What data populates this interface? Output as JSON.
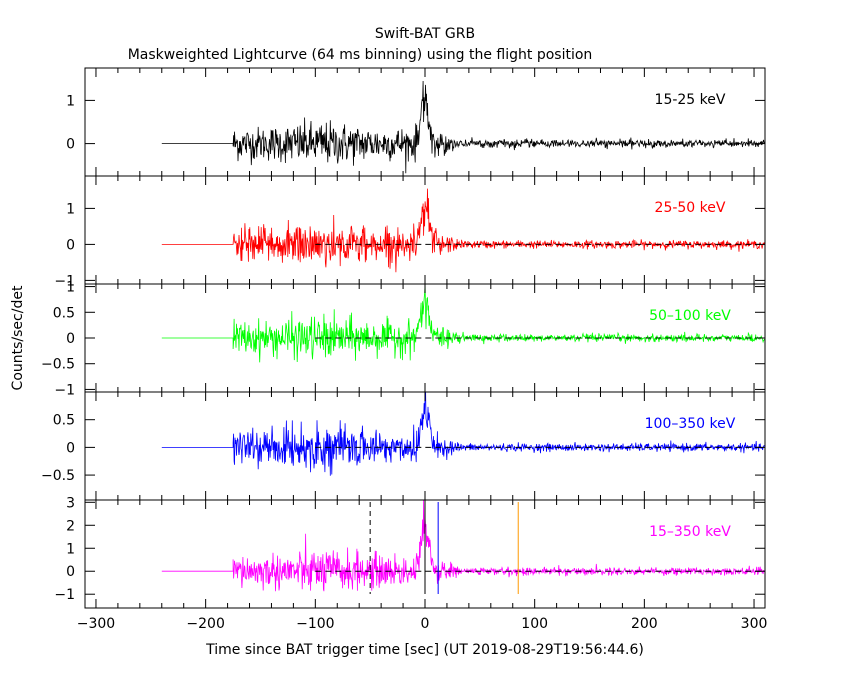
{
  "title": "Swift-BAT GRB",
  "subtitle": "Maskweighted Lightcurve (64 ms binning) using the flight position",
  "ylabel": "Counts/sec/det",
  "xlabel": "Time since BAT trigger time [sec] (UT 2019-08-29T19:56:44.6)",
  "chart_data": [
    {
      "type": "line",
      "band": "15-25 keV",
      "color": "#000000",
      "ylim": [
        -0.75,
        1.75
      ],
      "yticks": [
        0,
        1
      ],
      "ytick_labels": [
        "0",
        "1"
      ],
      "zero_dashed": false,
      "peak": 1.3
    },
    {
      "type": "line",
      "band": "25-50 keV",
      "color": "#ff0000",
      "ylim": [
        -1.1,
        1.9
      ],
      "yticks": [
        -1,
        0,
        1
      ],
      "ytick_labels": [
        "−1",
        "0",
        "1"
      ],
      "zero_dashed": true,
      "peak": 1.4
    },
    {
      "type": "line",
      "band": "50–100 keV",
      "color": "#00ff00",
      "ylim": [
        -1.05,
        1.05
      ],
      "yticks": [
        -1,
        -0.5,
        0,
        0.5,
        1
      ],
      "ytick_labels": [
        "−1",
        "−0.5",
        "0",
        "0.5",
        "1"
      ],
      "zero_dashed": true,
      "peak": 0.85
    },
    {
      "type": "line",
      "band": "100–350 keV",
      "color": "#0000ff",
      "ylim": [
        -0.95,
        1.0
      ],
      "yticks": [
        -0.5,
        0,
        0.5
      ],
      "ytick_labels": [
        "−0.5",
        "0",
        "0.5"
      ],
      "zero_dashed": true,
      "peak": 0.9
    },
    {
      "type": "line",
      "band": "15–350 keV",
      "color": "#ff00ff",
      "ylim": [
        -1.6,
        3.1
      ],
      "yticks": [
        -1,
        0,
        1,
        2,
        3
      ],
      "ytick_labels": [
        "−1",
        "0",
        "1",
        "2",
        "3"
      ],
      "zero_dashed": true,
      "peak": 2.6,
      "markers": [
        {
          "x": -50,
          "color": "#000000",
          "style": "dashed"
        },
        {
          "x": 0,
          "color": "#000000",
          "style": "solid"
        },
        {
          "x": 12,
          "color": "#0000ff",
          "style": "solid"
        },
        {
          "x": 85,
          "color": "#ff9900",
          "style": "solid"
        }
      ]
    }
  ],
  "xaxis": {
    "xlim": [
      -310,
      310
    ],
    "ticks": [
      -300,
      -200,
      -100,
      0,
      100,
      200,
      300
    ],
    "tick_labels": [
      "−300",
      "−200",
      "−100",
      "0",
      "100",
      "200",
      "300"
    ],
    "flat_start": -240,
    "data_start": -175
  }
}
